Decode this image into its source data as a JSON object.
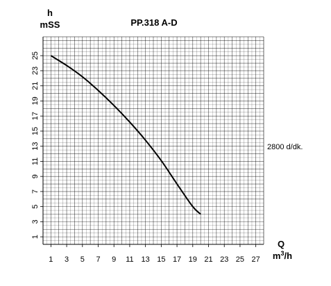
{
  "chart_data": {
    "type": "line",
    "title": "PP.318 A-D",
    "ylabel_top": "h",
    "ylabel_unit": "mSS",
    "xlabel_top": "Q",
    "xlabel_unit_base": "m",
    "xlabel_unit_sup": "3",
    "xlabel_unit_tail": "/h",
    "x_ticks": [
      "1",
      "3",
      "5",
      "7",
      "9",
      "11",
      "13",
      "15",
      "17",
      "19",
      "21",
      "23",
      "25",
      "27"
    ],
    "y_ticks": [
      "1",
      "3",
      "5",
      "7",
      "9",
      "11",
      "13",
      "15",
      "17",
      "19",
      "21",
      "23",
      "25"
    ],
    "xlim": [
      0,
      28
    ],
    "ylim": [
      0,
      27.5
    ],
    "grid": true,
    "series": [
      {
        "name": "2800 d/dk.",
        "color": "#000000",
        "x": [
          1,
          3,
          5,
          7,
          9,
          11,
          13,
          15,
          17,
          19,
          20
        ],
        "y": [
          25,
          23.7,
          22.2,
          20.4,
          18.4,
          16.2,
          13.8,
          11.1,
          8.0,
          5.0,
          4.0
        ]
      }
    ]
  }
}
